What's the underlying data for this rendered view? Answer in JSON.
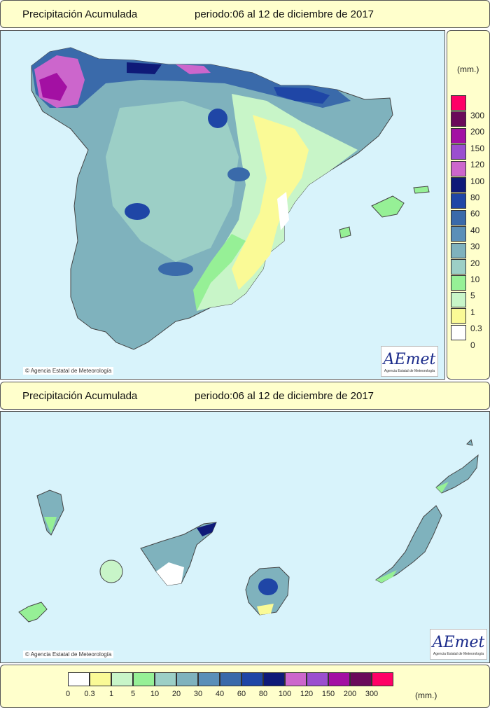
{
  "top_header": {
    "title": "Precipitación Acumulada",
    "period": "periodo:06 al 12 de diciembre de 2017"
  },
  "bottom_header": {
    "title": "Precipitación Acumulada",
    "period": "periodo:06 al 12 de diciembre de 2017"
  },
  "credit": "Agencia Estatal de Meteorología",
  "logo": {
    "text": "AEmet",
    "subtitle": "Agencia Estatal de Meteorología"
  },
  "legend": {
    "unit": "(mm.)",
    "classes": [
      {
        "label": "0",
        "color": "#ffffff"
      },
      {
        "label": "0.3",
        "color": "#fafa96"
      },
      {
        "label": "1",
        "color": "#c8f5c8"
      },
      {
        "label": "5",
        "color": "#96f096"
      },
      {
        "label": "10",
        "color": "#9ccfc6"
      },
      {
        "label": "20",
        "color": "#7fb2bd"
      },
      {
        "label": "30",
        "color": "#5a8fb8"
      },
      {
        "label": "40",
        "color": "#3a6aaa"
      },
      {
        "label": "60",
        "color": "#1f46a6"
      },
      {
        "label": "80",
        "color": "#0f1a78"
      },
      {
        "label": "100",
        "color": "#cc66cc"
      },
      {
        "label": "120",
        "color": "#9b4fcf"
      },
      {
        "label": "150",
        "color": "#a310a3"
      },
      {
        "label": "200",
        "color": "#6a0a5a"
      },
      {
        "label": "300",
        "color": "#ff0066"
      }
    ]
  }
}
